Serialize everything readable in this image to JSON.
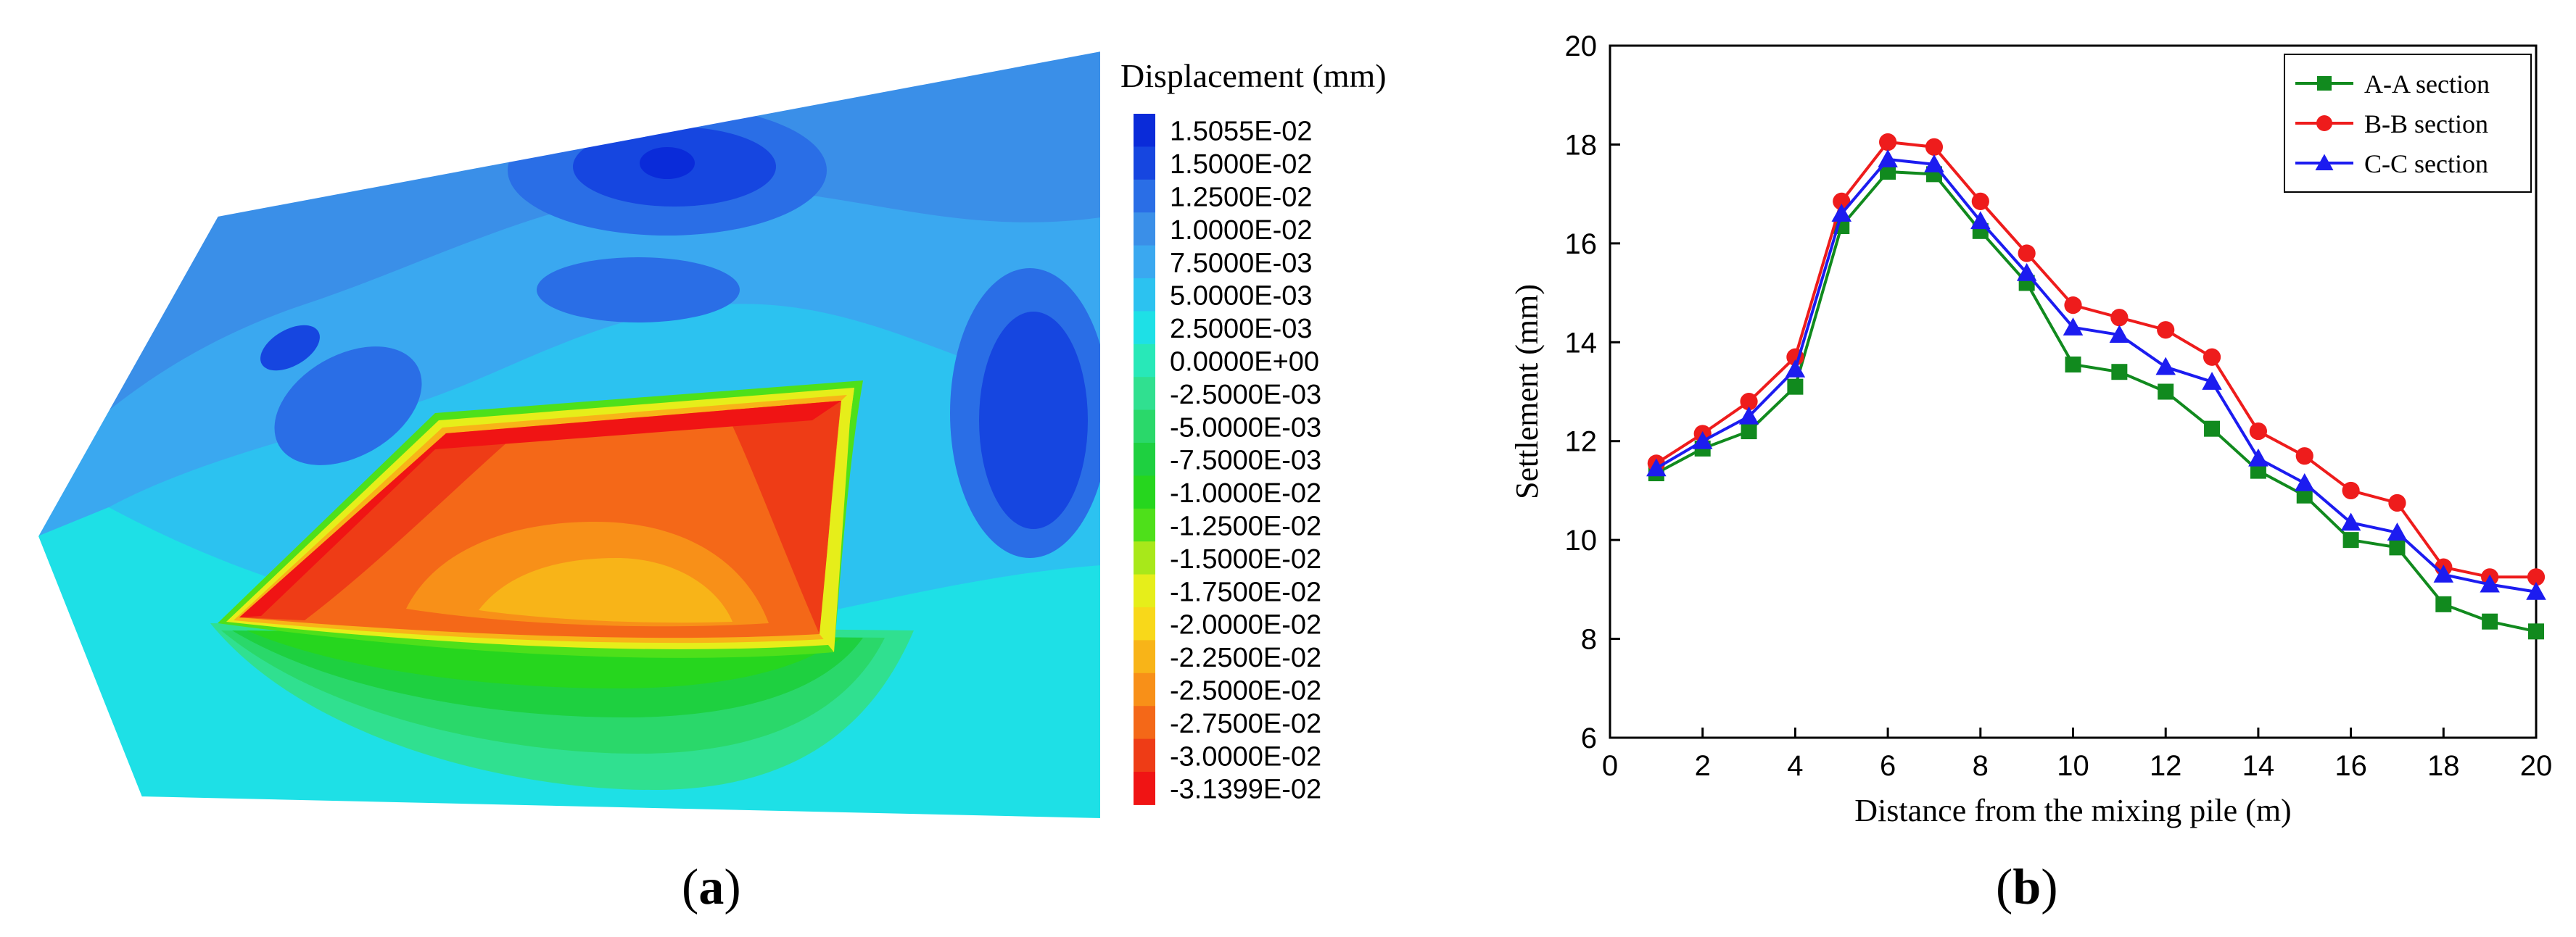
{
  "panel_a": {
    "legend_title": "Displacement (mm)",
    "legend_levels": [
      {
        "label": "1.5055E-02",
        "color": "#0a2bd9"
      },
      {
        "label": "1.5000E-02",
        "color": "#1646e0"
      },
      {
        "label": "1.2500E-02",
        "color": "#2a6ee6"
      },
      {
        "label": "1.0000E-02",
        "color": "#3a8fe8"
      },
      {
        "label": "7.5000E-03",
        "color": "#3aa8f0"
      },
      {
        "label": "5.0000E-03",
        "color": "#2cc2f0"
      },
      {
        "label": "2.5000E-03",
        "color": "#1ee0e6"
      },
      {
        "label": "0.0000E+00",
        "color": "#28e8b8"
      },
      {
        "label": "-2.5000E-03",
        "color": "#30e090"
      },
      {
        "label": "-5.0000E-03",
        "color": "#2ad86a"
      },
      {
        "label": "-7.5000E-03",
        "color": "#1ed040"
      },
      {
        "label": "-1.0000E-02",
        "color": "#26d61e"
      },
      {
        "label": "-1.2500E-02",
        "color": "#4ee01a"
      },
      {
        "label": "-1.5000E-02",
        "color": "#a8e81a"
      },
      {
        "label": "-1.7500E-02",
        "color": "#e6ee1a"
      },
      {
        "label": "-2.0000E-02",
        "color": "#f8d81a"
      },
      {
        "label": "-2.2500E-02",
        "color": "#f8b418"
      },
      {
        "label": "-2.5000E-02",
        "color": "#f89018"
      },
      {
        "label": "-2.7500E-02",
        "color": "#f46818"
      },
      {
        "label": "-3.0000E-02",
        "color": "#ee3c16"
      },
      {
        "label": "-3.1399E-02",
        "color": "#f01414"
      }
    ],
    "caption_letter": "a"
  },
  "chart_data": {
    "type": "line",
    "title": "",
    "xlabel": "Distance from the mixing pile (m)",
    "ylabel": "Settlement (mm)",
    "xlim": [
      0,
      20
    ],
    "ylim": [
      6,
      20
    ],
    "xticks": [
      0,
      2,
      4,
      6,
      8,
      10,
      12,
      14,
      16,
      18,
      20
    ],
    "yticks": [
      6,
      8,
      10,
      12,
      14,
      16,
      18,
      20
    ],
    "x": [
      1,
      2,
      3,
      4,
      5,
      6,
      7,
      8,
      9,
      10,
      11,
      12,
      13,
      14,
      15,
      16,
      17,
      18,
      19,
      20
    ],
    "series": [
      {
        "name": "A-A section",
        "color": "#118a1e",
        "marker": "square",
        "values": [
          11.35,
          11.85,
          12.2,
          13.1,
          16.35,
          17.45,
          17.4,
          16.25,
          15.2,
          13.55,
          13.4,
          13.0,
          12.25,
          11.4,
          10.9,
          10.0,
          9.85,
          8.7,
          8.35,
          8.15
        ]
      },
      {
        "name": "B-B section",
        "color": "#ee1c1c",
        "marker": "circle",
        "values": [
          11.55,
          12.15,
          12.8,
          13.7,
          16.85,
          18.05,
          17.95,
          16.85,
          15.8,
          14.75,
          14.5,
          14.25,
          13.7,
          12.2,
          11.7,
          11.0,
          10.75,
          9.45,
          9.25,
          9.25
        ]
      },
      {
        "name": "C-C section",
        "color": "#1c1cf0",
        "marker": "triangle",
        "values": [
          11.45,
          12.0,
          12.5,
          13.45,
          16.6,
          17.7,
          17.6,
          16.45,
          15.4,
          14.3,
          14.15,
          13.5,
          13.2,
          11.65,
          11.15,
          10.35,
          10.15,
          9.3,
          9.1,
          8.95
        ]
      }
    ],
    "legend_position": "top-right",
    "caption_letter": "b"
  }
}
